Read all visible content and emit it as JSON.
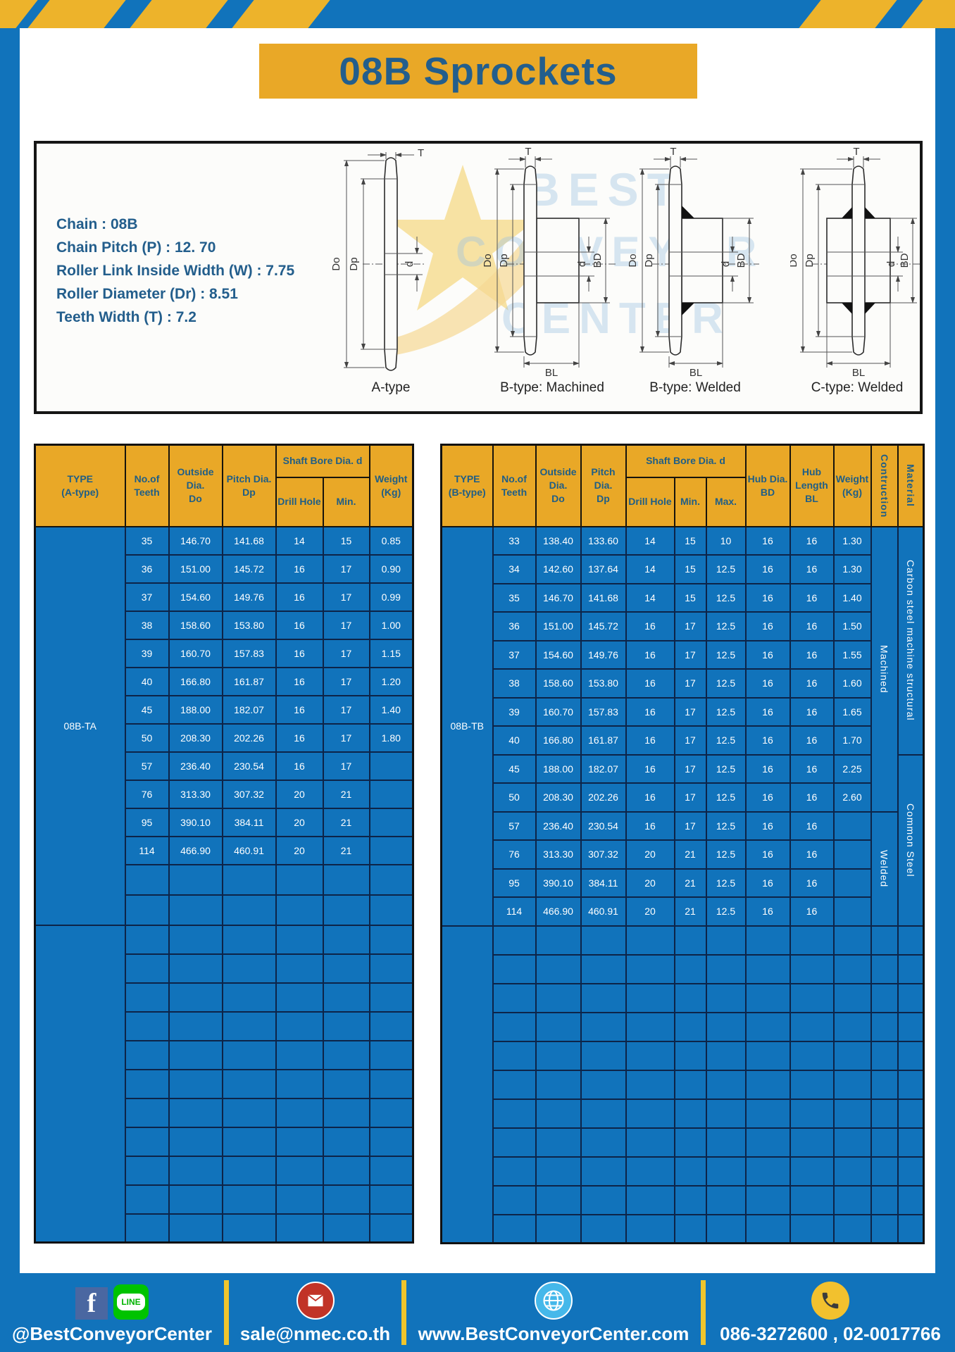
{
  "page": {
    "title": "08B Sprockets"
  },
  "specs": {
    "lines": [
      "Chain : 08B",
      "Chain Pitch (P) : 12. 70",
      "Roller Link Inside Width (W) : 7.75",
      "Roller Diameter (Dr) : 8.51",
      "Teeth Width (T) : 7.2"
    ]
  },
  "diagram": {
    "types": [
      "A-type",
      "B-type: Machined",
      "B-type: Welded",
      "C-type: Welded"
    ],
    "dims": {
      "t": "T",
      "dia_outside": "Do",
      "dia_pitch": "Dp",
      "bore": "d",
      "hub_dia": "BD",
      "hub_len": "BL"
    },
    "watermark": [
      "BEST",
      "CONVEYOR",
      "CENTER"
    ]
  },
  "table_a": {
    "type_label": "08B-TA",
    "header": {
      "type": [
        "TYPE",
        "(A-type)"
      ],
      "teeth": [
        "No.of",
        "Teeth"
      ],
      "outside": [
        "Outside",
        "Dia.",
        "Do"
      ],
      "pitch": [
        "Pitch Dia.",
        "Dp"
      ],
      "shaft_bore": "Shaft Bore Dia. d",
      "drill": "Drill Hole",
      "min": "Min.",
      "weight": [
        "Weight",
        "(Kg)"
      ]
    },
    "rows": [
      [
        "35",
        "146.70",
        "141.68",
        "14",
        "15",
        "0.85"
      ],
      [
        "36",
        "151.00",
        "145.72",
        "16",
        "17",
        "0.90"
      ],
      [
        "37",
        "154.60",
        "149.76",
        "16",
        "17",
        "0.99"
      ],
      [
        "38",
        "158.60",
        "153.80",
        "16",
        "17",
        "1.00"
      ],
      [
        "39",
        "160.70",
        "157.83",
        "16",
        "17",
        "1.15"
      ],
      [
        "40",
        "166.80",
        "161.87",
        "16",
        "17",
        "1.20"
      ],
      [
        "45",
        "188.00",
        "182.07",
        "16",
        "17",
        "1.40"
      ],
      [
        "50",
        "208.30",
        "202.26",
        "16",
        "17",
        "1.80"
      ],
      [
        "57",
        "236.40",
        "230.54",
        "16",
        "17",
        ""
      ],
      [
        "76",
        "313.30",
        "307.32",
        "20",
        "21",
        ""
      ],
      [
        "95",
        "390.10",
        "384.11",
        "20",
        "21",
        ""
      ],
      [
        "114",
        "466.90",
        "460.91",
        "20",
        "21",
        ""
      ]
    ],
    "empty_rows_in_group": 2,
    "empty_rows_tail": 11
  },
  "table_b": {
    "type_label": "08B-TB",
    "header": {
      "type": [
        "TYPE",
        "(B-type)"
      ],
      "teeth": [
        "No.of",
        "Teeth"
      ],
      "outside": [
        "Outside",
        "Dia.",
        "Do"
      ],
      "pitch": [
        "Pitch Dia.",
        "Dp"
      ],
      "shaft_bore": "Shaft Bore Dia. d",
      "drill": "Drill Hole",
      "min": "Min.",
      "max": "Max.",
      "hub_dia": [
        "Hub Dia.",
        "BD"
      ],
      "hub_len": [
        "Hub",
        "Length",
        "BL"
      ],
      "weight": [
        "Weight",
        "(Kg)"
      ],
      "construction": "Contruction",
      "material": "Material"
    },
    "rows": [
      [
        "33",
        "138.40",
        "133.60",
        "14",
        "15",
        "10",
        "16",
        "16",
        "1.30"
      ],
      [
        "34",
        "142.60",
        "137.64",
        "14",
        "15",
        "12.5",
        "16",
        "16",
        "1.30"
      ],
      [
        "35",
        "146.70",
        "141.68",
        "14",
        "15",
        "12.5",
        "16",
        "16",
        "1.40"
      ],
      [
        "36",
        "151.00",
        "145.72",
        "16",
        "17",
        "12.5",
        "16",
        "16",
        "1.50"
      ],
      [
        "37",
        "154.60",
        "149.76",
        "16",
        "17",
        "12.5",
        "16",
        "16",
        "1.55"
      ],
      [
        "38",
        "158.60",
        "153.80",
        "16",
        "17",
        "12.5",
        "16",
        "16",
        "1.60"
      ],
      [
        "39",
        "160.70",
        "157.83",
        "16",
        "17",
        "12.5",
        "16",
        "16",
        "1.65"
      ],
      [
        "40",
        "166.80",
        "161.87",
        "16",
        "17",
        "12.5",
        "16",
        "16",
        "1.70"
      ],
      [
        "45",
        "188.00",
        "182.07",
        "16",
        "17",
        "12.5",
        "16",
        "16",
        "2.25"
      ],
      [
        "50",
        "208.30",
        "202.26",
        "16",
        "17",
        "12.5",
        "16",
        "16",
        "2.60"
      ],
      [
        "57",
        "236.40",
        "230.54",
        "16",
        "17",
        "12.5",
        "16",
        "16",
        ""
      ],
      [
        "76",
        "313.30",
        "307.32",
        "20",
        "21",
        "12.5",
        "16",
        "16",
        ""
      ],
      [
        "95",
        "390.10",
        "384.11",
        "20",
        "21",
        "12.5",
        "16",
        "16",
        ""
      ],
      [
        "114",
        "466.90",
        "460.91",
        "20",
        "21",
        "12.5",
        "16",
        "16",
        ""
      ]
    ],
    "construction": [
      {
        "label": "Machined",
        "rows": 10
      },
      {
        "label": "Welded",
        "rows": 4
      }
    ],
    "material": [
      {
        "label": "Carbon steel  machine structural",
        "rows": 8
      },
      {
        "label": "Common Steel",
        "rows": 6
      }
    ],
    "empty_rows_tail": 11
  },
  "footer": {
    "line_badge": "LINE",
    "social_handle": "@BestConveyorCenter",
    "email": "sale@nmec.co.th",
    "website": "www.BestConveyorCenter.com",
    "phone": "086-3272600 , 02-0017766"
  },
  "colors": {
    "frame_blue": "#1173BB",
    "banner_yellow": "#E9A827",
    "stripe_yellow": "#EDB32B",
    "table_body_blue": "#1173BB",
    "header_text_blue": "#1F5E86",
    "title_text_blue": "#235E8C",
    "border_navy": "#0D2448",
    "line_green": "#00C300",
    "facebook_blue": "#4A67A1",
    "email_red": "#C13327",
    "globe_blue": "#45B8EA",
    "phone_yellow": "#F2C12E"
  }
}
